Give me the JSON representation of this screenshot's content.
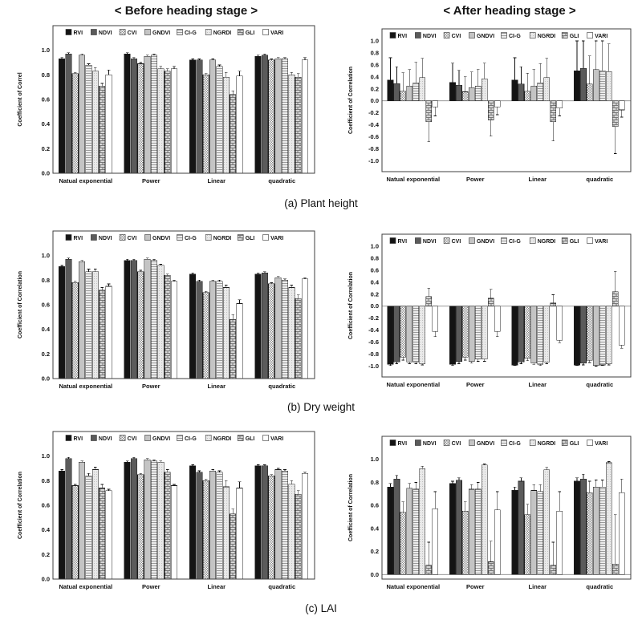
{
  "titles": {
    "before": "< Before heading stage >",
    "after": "< After heading stage >"
  },
  "captions": [
    "(a) Plant height",
    "(b) Dry weight",
    "(c) LAI"
  ],
  "legend": [
    "RVI",
    "NDVI",
    "CVI",
    "GNDVI",
    "CI-G",
    "NGRDI",
    "GLI",
    "VARI"
  ],
  "series_styles": [
    {
      "name": "RVI",
      "pattern": "solid",
      "color": "#141414"
    },
    {
      "name": "NDVI",
      "pattern": "solid",
      "color": "#5b5b5b"
    },
    {
      "name": "CVI",
      "pattern": "checker",
      "color": "#8f8f8f",
      "bg": "#ffffff"
    },
    {
      "name": "GNDVI",
      "pattern": "solid",
      "color": "#c4c4c4"
    },
    {
      "name": "CI-G",
      "pattern": "hlines",
      "color": "#9a9a9a",
      "bg": "#ececec"
    },
    {
      "name": "NGRDI",
      "pattern": "finedots",
      "color": "#c0c0c0",
      "bg": "#e9e9e9"
    },
    {
      "name": "GLI",
      "pattern": "brick",
      "color": "#787878",
      "bg": "#d6d6d6"
    },
    {
      "name": "VARI",
      "pattern": "solid",
      "color": "#ffffff"
    }
  ],
  "chart_data": [
    {
      "id": "plant-height-before",
      "type": "bar",
      "side": "left",
      "ylabel": "Coefficient of Correl",
      "ylim": [
        0,
        1.2
      ],
      "yticks": [
        1.0,
        0.8,
        0.6,
        0.4,
        0.2,
        0.0
      ],
      "categories": [
        "Natual exponential",
        "Power",
        "Linear",
        "quadratic"
      ],
      "series": [
        {
          "name": "RVI",
          "values": [
            0.93,
            0.97,
            0.92,
            0.95
          ],
          "errors": [
            0.01,
            0.01,
            0.01,
            0.01
          ]
        },
        {
          "name": "NDVI",
          "values": [
            0.97,
            0.93,
            0.92,
            0.96
          ],
          "errors": [
            0.01,
            0.01,
            0.01,
            0.01
          ]
        },
        {
          "name": "CVI",
          "values": [
            0.81,
            0.89,
            0.8,
            0.92
          ],
          "errors": [
            0.01,
            0.01,
            0.01,
            0.01
          ]
        },
        {
          "name": "GNDVI",
          "values": [
            0.96,
            0.95,
            0.92,
            0.93
          ],
          "errors": [
            0.01,
            0.01,
            0.01,
            0.01
          ]
        },
        {
          "name": "CI-G",
          "values": [
            0.88,
            0.96,
            0.87,
            0.93
          ],
          "errors": [
            0.01,
            0.01,
            0.01,
            0.01
          ]
        },
        {
          "name": "NGRDI",
          "values": [
            0.83,
            0.85,
            0.78,
            0.8
          ],
          "errors": [
            0.03,
            0.02,
            0.04,
            0.02
          ]
        },
        {
          "name": "GLI",
          "values": [
            0.71,
            0.83,
            0.64,
            0.78
          ],
          "errors": [
            0.02,
            0.02,
            0.03,
            0.03
          ]
        },
        {
          "name": "VARI",
          "values": [
            0.8,
            0.85,
            0.79,
            0.92
          ],
          "errors": [
            0.04,
            0.02,
            0.04,
            0.02
          ]
        }
      ]
    },
    {
      "id": "plant-height-after",
      "type": "bar",
      "side": "right",
      "ylabel": "Coefficient of Correlation",
      "ylim": [
        -1.18,
        1.2
      ],
      "yticks": [
        1.0,
        0.8,
        0.6,
        0.4,
        0.2,
        0.0,
        -0.2,
        -0.4,
        -0.6,
        -0.8,
        -1.0
      ],
      "categories": [
        "Natual exponential",
        "Power",
        "Linear",
        "quadratic"
      ],
      "series": [
        {
          "name": "RVI",
          "values": [
            0.35,
            0.31,
            0.35,
            0.5
          ],
          "errors": [
            0.37,
            0.32,
            0.37,
            0.5
          ]
        },
        {
          "name": "NDVI",
          "values": [
            0.29,
            0.26,
            0.28,
            0.54
          ],
          "errors": [
            0.28,
            0.25,
            0.29,
            0.46
          ]
        },
        {
          "name": "CVI",
          "values": [
            0.16,
            0.15,
            0.16,
            0.28
          ],
          "errors": [
            0.31,
            0.25,
            0.3,
            0.47
          ]
        },
        {
          "name": "GNDVI",
          "values": [
            0.25,
            0.22,
            0.25,
            0.52
          ],
          "errors": [
            0.27,
            0.26,
            0.27,
            0.48
          ]
        },
        {
          "name": "CI-G",
          "values": [
            0.3,
            0.25,
            0.3,
            0.5
          ],
          "errors": [
            0.34,
            0.27,
            0.32,
            0.5
          ]
        },
        {
          "name": "NGRDI",
          "values": [
            0.39,
            0.37,
            0.39,
            0.49
          ],
          "errors": [
            0.32,
            0.26,
            0.32,
            0.46
          ]
        },
        {
          "name": "GLI",
          "values": [
            -0.35,
            -0.32,
            -0.35,
            -0.43
          ],
          "errors": [
            0.33,
            0.27,
            0.32,
            0.45
          ]
        },
        {
          "name": "VARI",
          "values": [
            -0.1,
            -0.1,
            -0.12,
            -0.15
          ],
          "errors": [
            0.15,
            0.13,
            0.13,
            0.12
          ]
        }
      ]
    },
    {
      "id": "dry-weight-before",
      "type": "bar",
      "side": "left",
      "ylabel": "Coefficient of Correlation",
      "ylim": [
        0,
        1.2
      ],
      "yticks": [
        1.0,
        0.8,
        0.6,
        0.4,
        0.2,
        0.0
      ],
      "categories": [
        "Natual exponential",
        "Power",
        "Linear",
        "quadratic"
      ],
      "series": [
        {
          "name": "RVI",
          "values": [
            0.91,
            0.96,
            0.85,
            0.85
          ],
          "errors": [
            0.01,
            0.01,
            0.01,
            0.01
          ]
        },
        {
          "name": "NDVI",
          "values": [
            0.97,
            0.96,
            0.79,
            0.86
          ],
          "errors": [
            0.01,
            0.01,
            0.01,
            0.01
          ]
        },
        {
          "name": "CVI",
          "values": [
            0.78,
            0.87,
            0.7,
            0.77
          ],
          "errors": [
            0.01,
            0.01,
            0.01,
            0.01
          ]
        },
        {
          "name": "GNDVI",
          "values": [
            0.95,
            0.97,
            0.79,
            0.82
          ],
          "errors": [
            0.01,
            0.01,
            0.01,
            0.01
          ]
        },
        {
          "name": "CI-G",
          "values": [
            0.87,
            0.96,
            0.79,
            0.8
          ],
          "errors": [
            0.02,
            0.01,
            0.01,
            0.01
          ]
        },
        {
          "name": "NGRDI",
          "values": [
            0.87,
            0.92,
            0.74,
            0.74
          ],
          "errors": [
            0.02,
            0.01,
            0.02,
            0.02
          ]
        },
        {
          "name": "GLI",
          "values": [
            0.72,
            0.84,
            0.48,
            0.65
          ],
          "errors": [
            0.02,
            0.01,
            0.04,
            0.03
          ]
        },
        {
          "name": "VARI",
          "values": [
            0.75,
            0.79,
            0.61,
            0.81
          ],
          "errors": [
            0.02,
            0.01,
            0.03,
            0.01
          ]
        }
      ]
    },
    {
      "id": "dry-weight-after",
      "type": "bar",
      "side": "right",
      "ylabel": "Coefficient of Correlation",
      "ylim": [
        -1.18,
        1.2
      ],
      "yticks": [
        1.0,
        0.8,
        0.6,
        0.4,
        0.2,
        0.0,
        -0.2,
        -0.4,
        -0.6,
        -0.8,
        -1.0
      ],
      "categories": [
        "Natual exponential",
        "Power",
        "Linear",
        "quadratic"
      ],
      "series": [
        {
          "name": "RVI",
          "values": [
            -0.97,
            -0.97,
            -0.98,
            -0.98
          ],
          "errors": [
            0.02,
            0.02,
            0.01,
            0.01
          ]
        },
        {
          "name": "NDVI",
          "values": [
            -0.93,
            -0.92,
            -0.93,
            -0.95
          ],
          "errors": [
            0.03,
            0.04,
            0.03,
            0.03
          ]
        },
        {
          "name": "CVI",
          "values": [
            -0.85,
            -0.85,
            -0.87,
            -0.9
          ],
          "errors": [
            0.05,
            0.05,
            0.04,
            0.04
          ]
        },
        {
          "name": "GNDVI",
          "values": [
            -0.93,
            -0.92,
            -0.95,
            -0.99
          ],
          "errors": [
            0.03,
            0.03,
            0.02,
            0.01
          ]
        },
        {
          "name": "CI-G",
          "values": [
            -0.93,
            -0.88,
            -0.97,
            -0.98
          ],
          "errors": [
            0.03,
            0.04,
            0.02,
            0.01
          ]
        },
        {
          "name": "NGRDI",
          "values": [
            -0.96,
            -0.88,
            -0.93,
            -0.96
          ],
          "errors": [
            0.02,
            0.04,
            0.03,
            0.02
          ]
        },
        {
          "name": "GLI",
          "values": [
            0.16,
            0.13,
            0.05,
            0.24
          ],
          "errors": [
            0.14,
            0.15,
            0.14,
            0.34
          ]
        },
        {
          "name": "VARI",
          "values": [
            -0.42,
            -0.42,
            -0.57,
            -0.65
          ],
          "errors": [
            0.09,
            0.09,
            0.04,
            0.05
          ]
        }
      ]
    },
    {
      "id": "lai-before",
      "type": "bar",
      "side": "left",
      "ylabel": "Coefficient of Correlation",
      "ylim": [
        0,
        1.2
      ],
      "yticks": [
        1.0,
        0.8,
        0.6,
        0.4,
        0.2,
        0.0
      ],
      "categories": [
        "Natual exponential",
        "Power",
        "Linear",
        "quadratic"
      ],
      "series": [
        {
          "name": "RVI",
          "values": [
            0.88,
            0.95,
            0.92,
            0.92
          ],
          "errors": [
            0.01,
            0.01,
            0.01,
            0.01
          ]
        },
        {
          "name": "NDVI",
          "values": [
            0.98,
            0.98,
            0.87,
            0.92
          ],
          "errors": [
            0.01,
            0.01,
            0.01,
            0.01
          ]
        },
        {
          "name": "CVI",
          "values": [
            0.76,
            0.85,
            0.8,
            0.84
          ],
          "errors": [
            0.01,
            0.01,
            0.01,
            0.01
          ]
        },
        {
          "name": "GNDVI",
          "values": [
            0.95,
            0.97,
            0.88,
            0.89
          ],
          "errors": [
            0.01,
            0.01,
            0.01,
            0.01
          ]
        },
        {
          "name": "CI-G",
          "values": [
            0.84,
            0.96,
            0.87,
            0.88
          ],
          "errors": [
            0.02,
            0.01,
            0.01,
            0.01
          ]
        },
        {
          "name": "NGRDI",
          "values": [
            0.89,
            0.95,
            0.75,
            0.77
          ],
          "errors": [
            0.02,
            0.01,
            0.05,
            0.03
          ]
        },
        {
          "name": "GLI",
          "values": [
            0.74,
            0.87,
            0.53,
            0.69
          ],
          "errors": [
            0.03,
            0.02,
            0.04,
            0.03
          ]
        },
        {
          "name": "VARI",
          "values": [
            0.72,
            0.76,
            0.74,
            0.86
          ],
          "errors": [
            0.01,
            0.01,
            0.05,
            0.01
          ]
        }
      ]
    },
    {
      "id": "lai-after",
      "type": "bar",
      "side": "right",
      "ylabel": "Coefficient of Correlation",
      "ylim": [
        -0.04,
        1.2
      ],
      "yticks": [
        1.0,
        0.8,
        0.6,
        0.4,
        0.2,
        0.0
      ],
      "categories": [
        "Natual exponential",
        "Power",
        "Linear",
        "quadratic"
      ],
      "series": [
        {
          "name": "RVI",
          "values": [
            0.76,
            0.79,
            0.73,
            0.81
          ],
          "errors": [
            0.03,
            0.02,
            0.03,
            0.03
          ]
        },
        {
          "name": "NDVI",
          "values": [
            0.83,
            0.82,
            0.81,
            0.83
          ],
          "errors": [
            0.03,
            0.02,
            0.03,
            0.04
          ]
        },
        {
          "name": "CVI",
          "values": [
            0.54,
            0.55,
            0.52,
            0.71
          ],
          "errors": [
            0.09,
            0.08,
            0.09,
            0.1
          ]
        },
        {
          "name": "GNDVI",
          "values": [
            0.75,
            0.74,
            0.73,
            0.76
          ],
          "errors": [
            0.04,
            0.04,
            0.05,
            0.06
          ]
        },
        {
          "name": "CI-G",
          "values": [
            0.74,
            0.74,
            0.72,
            0.76
          ],
          "errors": [
            0.06,
            0.06,
            0.06,
            0.06
          ]
        },
        {
          "name": "NGRDI",
          "values": [
            0.92,
            0.95,
            0.91,
            0.97
          ],
          "errors": [
            0.02,
            0.01,
            0.02,
            0.01
          ]
        },
        {
          "name": "GLI",
          "values": [
            0.08,
            0.11,
            0.08,
            0.09
          ],
          "errors": [
            0.2,
            0.18,
            0.2,
            0.43
          ]
        },
        {
          "name": "VARI",
          "values": [
            0.57,
            0.56,
            0.55,
            0.71
          ],
          "errors": [
            0.15,
            0.16,
            0.17,
            0.12
          ]
        }
      ]
    }
  ]
}
